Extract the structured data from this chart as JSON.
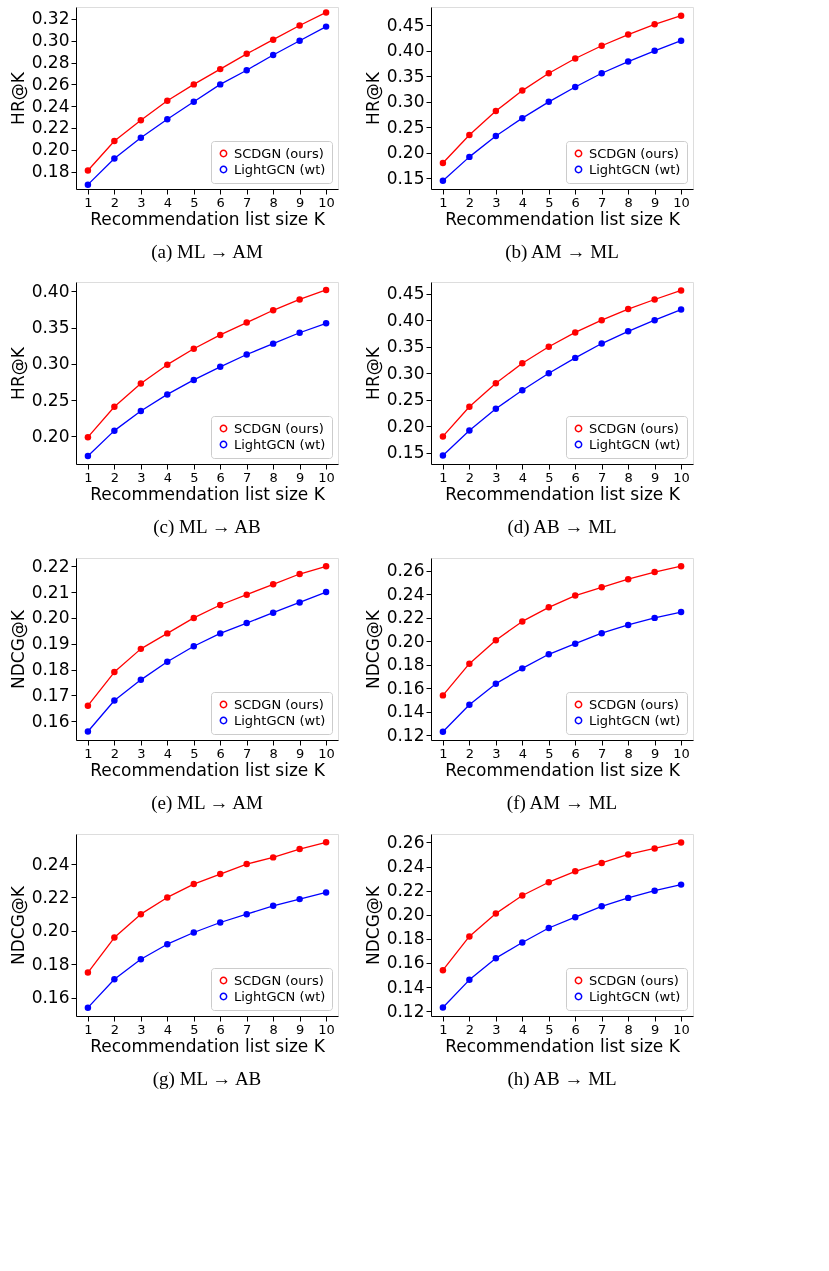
{
  "chart_data": [
    {
      "type": "line",
      "title": "(a)  ML → AM",
      "xlabel": "Recommendation list size K",
      "ylabel": "HR@K",
      "x": [
        1,
        2,
        3,
        4,
        5,
        6,
        7,
        8,
        9,
        10
      ],
      "xlim": [
        0.55,
        10.45
      ],
      "xticks": [
        1,
        2,
        3,
        4,
        5,
        6,
        7,
        8,
        9,
        10
      ],
      "ylim": [
        0.164,
        0.331
      ],
      "yticks": [
        0.18,
        {
          "value": 0.2,
          "label": "0.20"
        },
        0.22,
        0.24,
        0.26,
        0.28,
        {
          "value": 0.3,
          "label": "0.30"
        },
        0.32
      ],
      "legend": "bottom right",
      "grid": false,
      "marker": "circle",
      "line_style": "solid",
      "series": [
        {
          "name": "SCDGN (ours)",
          "color": "#ff0000",
          "values": [
            0.181,
            0.208,
            0.227,
            0.245,
            0.26,
            0.274,
            0.288,
            0.301,
            0.314,
            0.326
          ]
        },
        {
          "name": "LightGCN (wt)",
          "color": "#0000ff",
          "values": [
            0.168,
            0.192,
            0.211,
            0.228,
            0.244,
            0.26,
            0.273,
            0.287,
            0.3,
            0.313
          ]
        }
      ]
    },
    {
      "type": "line",
      "title": "(b)  AM → ML",
      "xlabel": "Recommendation list size K",
      "ylabel": "HR@K",
      "x": [
        1,
        2,
        3,
        4,
        5,
        6,
        7,
        8,
        9,
        10
      ],
      "xlim": [
        0.55,
        10.45
      ],
      "xticks": [
        1,
        2,
        3,
        4,
        5,
        6,
        7,
        8,
        9,
        10
      ],
      "ylim": [
        0.129,
        0.486
      ],
      "yticks": [
        0.15,
        {
          "value": 0.2,
          "label": "0.20"
        },
        0.25,
        {
          "value": 0.3,
          "label": "0.30"
        },
        0.35,
        {
          "value": 0.4,
          "label": "0.40"
        },
        0.45
      ],
      "legend": "bottom right",
      "grid": false,
      "marker": "circle",
      "line_style": "solid",
      "series": [
        {
          "name": "SCDGN (ours)",
          "color": "#ff0000",
          "values": [
            0.18,
            0.235,
            0.282,
            0.322,
            0.356,
            0.385,
            0.41,
            0.432,
            0.452,
            0.469
          ]
        },
        {
          "name": "LightGCN (wt)",
          "color": "#0000ff",
          "values": [
            0.145,
            0.192,
            0.233,
            0.268,
            0.3,
            0.329,
            0.356,
            0.379,
            0.4,
            0.42
          ]
        }
      ]
    },
    {
      "type": "line",
      "title": "(c)  ML → AB",
      "xlabel": "Recommendation list size K",
      "ylabel": "HR@K",
      "x": [
        1,
        2,
        3,
        4,
        5,
        6,
        7,
        8,
        9,
        10
      ],
      "xlim": [
        0.55,
        10.45
      ],
      "xticks": [
        1,
        2,
        3,
        4,
        5,
        6,
        7,
        8,
        9,
        10
      ],
      "ylim": [
        0.162,
        0.413
      ],
      "yticks": [
        {
          "value": 0.2,
          "label": "0.20"
        },
        0.25,
        {
          "value": 0.3,
          "label": "0.30"
        },
        0.35,
        {
          "value": 0.4,
          "label": "0.40"
        }
      ],
      "legend": "bottom right",
      "grid": false,
      "marker": "circle",
      "line_style": "solid",
      "series": [
        {
          "name": "SCDGN (ours)",
          "color": "#ff0000",
          "values": [
            0.199,
            0.241,
            0.273,
            0.299,
            0.321,
            0.34,
            0.357,
            0.374,
            0.389,
            0.402
          ]
        },
        {
          "name": "LightGCN (wt)",
          "color": "#0000ff",
          "values": [
            0.173,
            0.208,
            0.235,
            0.258,
            0.278,
            0.296,
            0.313,
            0.328,
            0.343,
            0.356
          ]
        }
      ]
    },
    {
      "type": "line",
      "title": "(d)  AB → ML",
      "xlabel": "Recommendation list size K",
      "ylabel": "HR@K",
      "x": [
        1,
        2,
        3,
        4,
        5,
        6,
        7,
        8,
        9,
        10
      ],
      "xlim": [
        0.55,
        10.45
      ],
      "xticks": [
        1,
        2,
        3,
        4,
        5,
        6,
        7,
        8,
        9,
        10
      ],
      "ylim": [
        0.129,
        0.472
      ],
      "yticks": [
        0.15,
        {
          "value": 0.2,
          "label": "0.20"
        },
        0.25,
        {
          "value": 0.3,
          "label": "0.30"
        },
        0.35,
        {
          "value": 0.4,
          "label": "0.40"
        },
        0.45
      ],
      "legend": "bottom right",
      "grid": false,
      "marker": "circle",
      "line_style": "solid",
      "series": [
        {
          "name": "SCDGN (ours)",
          "color": "#ff0000",
          "values": [
            0.181,
            0.237,
            0.281,
            0.319,
            0.35,
            0.377,
            0.4,
            0.421,
            0.439,
            0.456
          ]
        },
        {
          "name": "LightGCN (wt)",
          "color": "#0000ff",
          "values": [
            0.145,
            0.192,
            0.233,
            0.268,
            0.3,
            0.329,
            0.356,
            0.379,
            0.4,
            0.42
          ]
        }
      ]
    },
    {
      "type": "line",
      "title": "(e)  ML → AM",
      "xlabel": "Recommendation list size K",
      "ylabel": "NDCG@K",
      "x": [
        1,
        2,
        3,
        4,
        5,
        6,
        7,
        8,
        9,
        10
      ],
      "xlim": [
        0.55,
        10.45
      ],
      "xticks": [
        1,
        2,
        3,
        4,
        5,
        6,
        7,
        8,
        9,
        10
      ],
      "ylim": [
        0.1527,
        0.2232
      ],
      "yticks": [
        0.16,
        0.17,
        0.18,
        0.19,
        {
          "value": 0.2,
          "label": "0.20"
        },
        0.21,
        0.22
      ],
      "legend": "bottom right",
      "grid": false,
      "marker": "circle",
      "line_style": "solid",
      "series": [
        {
          "name": "SCDGN (ours)",
          "color": "#ff0000",
          "values": [
            0.166,
            0.179,
            0.188,
            0.194,
            0.2,
            0.205,
            0.209,
            0.213,
            0.217,
            0.22
          ]
        },
        {
          "name": "LightGCN (wt)",
          "color": "#0000ff",
          "values": [
            0.156,
            0.168,
            0.176,
            0.183,
            0.189,
            0.194,
            0.198,
            0.202,
            0.206,
            0.21
          ]
        }
      ]
    },
    {
      "type": "line",
      "title": "(f)  AM → ML",
      "xlabel": "Recommendation list size K",
      "ylabel": "NDCG@K",
      "x": [
        1,
        2,
        3,
        4,
        5,
        6,
        7,
        8,
        9,
        10
      ],
      "xlim": [
        0.55,
        10.45
      ],
      "xticks": [
        1,
        2,
        3,
        4,
        5,
        6,
        7,
        8,
        9,
        10
      ],
      "ylim": [
        0.116,
        0.271
      ],
      "yticks": [
        0.12,
        0.14,
        0.16,
        0.18,
        {
          "value": 0.2,
          "label": "0.20"
        },
        0.22,
        0.24,
        0.26
      ],
      "legend": "bottom right",
      "grid": false,
      "marker": "circle",
      "line_style": "solid",
      "series": [
        {
          "name": "SCDGN (ours)",
          "color": "#ff0000",
          "values": [
            0.154,
            0.181,
            0.201,
            0.217,
            0.229,
            0.239,
            0.246,
            0.253,
            0.259,
            0.264
          ]
        },
        {
          "name": "LightGCN (wt)",
          "color": "#0000ff",
          "values": [
            0.123,
            0.146,
            0.164,
            0.177,
            0.189,
            0.198,
            0.207,
            0.214,
            0.22,
            0.225
          ]
        }
      ]
    },
    {
      "type": "line",
      "title": "(g)  ML → AB",
      "xlabel": "Recommendation list size K",
      "ylabel": "NDCG@K",
      "x": [
        1,
        2,
        3,
        4,
        5,
        6,
        7,
        8,
        9,
        10
      ],
      "xlim": [
        0.55,
        10.45
      ],
      "xticks": [
        1,
        2,
        3,
        4,
        5,
        6,
        7,
        8,
        9,
        10
      ],
      "ylim": [
        0.149,
        0.258
      ],
      "yticks": [
        0.16,
        0.18,
        {
          "value": 0.2,
          "label": "0.20"
        },
        0.22,
        0.24
      ],
      "legend": "bottom right",
      "grid": false,
      "marker": "circle",
      "line_style": "solid",
      "series": [
        {
          "name": "SCDGN (ours)",
          "color": "#ff0000",
          "values": [
            0.175,
            0.196,
            0.21,
            0.22,
            0.228,
            0.234,
            0.24,
            0.244,
            0.249,
            0.253
          ]
        },
        {
          "name": "LightGCN (wt)",
          "color": "#0000ff",
          "values": [
            0.154,
            0.171,
            0.183,
            0.192,
            0.199,
            0.205,
            0.21,
            0.215,
            0.219,
            0.223
          ]
        }
      ]
    },
    {
      "type": "line",
      "title": "(h)  AB → ML",
      "xlabel": "Recommendation list size K",
      "ylabel": "NDCG@K",
      "x": [
        1,
        2,
        3,
        4,
        5,
        6,
        7,
        8,
        9,
        10
      ],
      "xlim": [
        0.55,
        10.45
      ],
      "xticks": [
        1,
        2,
        3,
        4,
        5,
        6,
        7,
        8,
        9,
        10
      ],
      "ylim": [
        0.116,
        0.267
      ],
      "yticks": [
        0.12,
        0.14,
        0.16,
        0.18,
        {
          "value": 0.2,
          "label": "0.20"
        },
        0.22,
        0.24,
        0.26
      ],
      "legend": "bottom right",
      "grid": false,
      "marker": "circle",
      "line_style": "solid",
      "series": [
        {
          "name": "SCDGN (ours)",
          "color": "#ff0000",
          "values": [
            0.154,
            0.182,
            0.201,
            0.216,
            0.227,
            0.236,
            0.243,
            0.25,
            0.255,
            0.26
          ]
        },
        {
          "name": "LightGCN (wt)",
          "color": "#0000ff",
          "values": [
            0.123,
            0.146,
            0.164,
            0.177,
            0.189,
            0.198,
            0.207,
            0.214,
            0.22,
            0.225
          ]
        }
      ]
    }
  ]
}
